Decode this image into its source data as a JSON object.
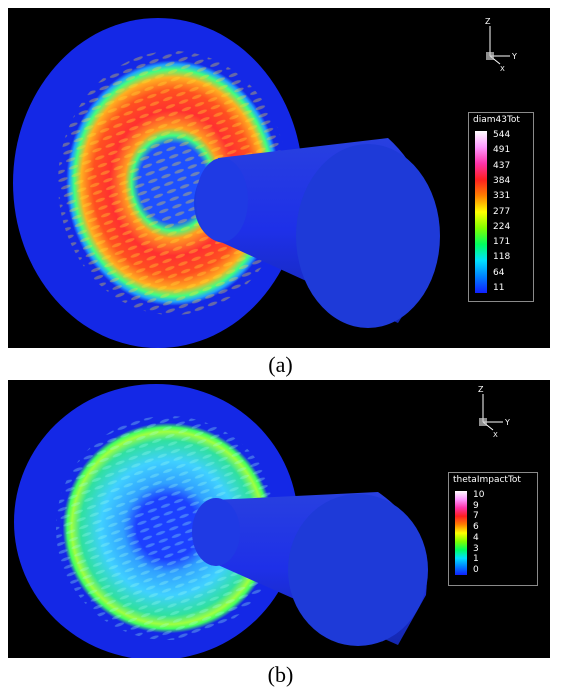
{
  "figure": {
    "panels": [
      {
        "caption": "(a)",
        "legend": {
          "title": "diam43Tot",
          "levels": [
            "544",
            "491",
            "437",
            "384",
            "331",
            "277",
            "224",
            "171",
            "118",
            "64",
            "11"
          ]
        },
        "axes": {
          "z": "Z",
          "y": "Y",
          "x": "X"
        }
      },
      {
        "caption": "(b)",
        "legend": {
          "title": "thetaImpactTot",
          "levels": [
            "10",
            "9",
            "7",
            "6",
            "4",
            "3",
            "1",
            "0"
          ]
        },
        "axes": {
          "z": "Z",
          "y": "Y",
          "x": "X"
        }
      }
    ],
    "colors": {
      "background": "#000000",
      "base_blue": "#1428e6",
      "cone_blue": "#1e3cdc"
    },
    "colormap": [
      "#ffffff",
      "#ff99ff",
      "#ff33aa",
      "#ff2020",
      "#ff8000",
      "#ffff00",
      "#80ff00",
      "#00ff60",
      "#00e0ff",
      "#0080ff",
      "#1020ff"
    ]
  }
}
